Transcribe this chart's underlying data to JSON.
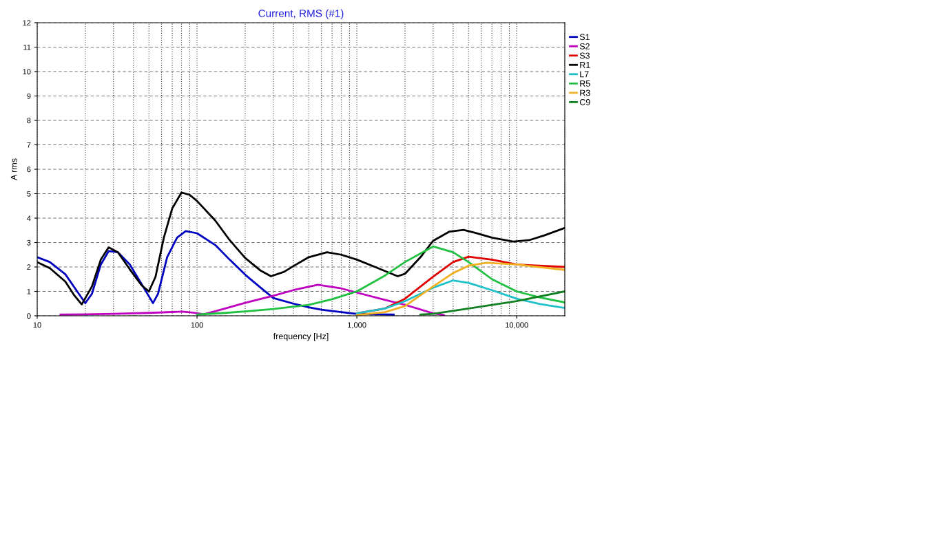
{
  "chart_data": {
    "type": "line",
    "title": "Current, RMS (#1)",
    "xlabel": "frequency [Hz]",
    "ylabel": "A rms",
    "log": "x",
    "xlim": [
      10,
      20000
    ],
    "xticks": [
      10,
      100,
      {
        "value": 1000,
        "label": "1,000"
      },
      {
        "value": 10000,
        "label": "10,000"
      }
    ],
    "ylim": [
      0,
      12
    ],
    "yticks": [
      0,
      1,
      2,
      3,
      4,
      5,
      6,
      7,
      8,
      9,
      10,
      11,
      12
    ],
    "grid": true,
    "legend": "right",
    "marker": "none",
    "line_style": "solid",
    "series": [
      {
        "name": "S1",
        "color": "#0000c0",
        "x": [
          10,
          12,
          15,
          18,
          20,
          22,
          25,
          28,
          32,
          38,
          45,
          50,
          53,
          57,
          65,
          75,
          85,
          100,
          130,
          160,
          202,
          250,
          300,
          400,
          500,
          600,
          800,
          1000,
          1300,
          1700
        ],
        "values": [
          2.4,
          2.2,
          1.7,
          0.95,
          0.52,
          0.9,
          2.1,
          2.65,
          2.6,
          2.1,
          1.3,
          0.8,
          0.52,
          0.9,
          2.4,
          3.2,
          3.47,
          3.38,
          2.9,
          2.3,
          1.66,
          1.15,
          0.73,
          0.5,
          0.35,
          0.25,
          0.15,
          0.08,
          0.06,
          0.05
        ]
      },
      {
        "name": "S2",
        "color": "#c000c0",
        "x": [
          14,
          20,
          30,
          50,
          80,
          95,
          110,
          150,
          200,
          300,
          400,
          570,
          800,
          1000,
          1500,
          2000,
          3000,
          3500
        ],
        "values": [
          0.05,
          0.06,
          0.08,
          0.12,
          0.17,
          0.13,
          0.06,
          0.3,
          0.53,
          0.82,
          1.05,
          1.27,
          1.12,
          0.95,
          0.65,
          0.45,
          0.1,
          0.03
        ]
      },
      {
        "name": "S3",
        "color": "#e00000",
        "x": [
          1000,
          1500,
          2000,
          3000,
          4000,
          5000,
          7000,
          10000,
          20000
        ],
        "values": [
          0.1,
          0.3,
          0.7,
          1.6,
          2.2,
          2.42,
          2.3,
          2.1,
          2.0
        ]
      },
      {
        "name": "R1",
        "color": "#000000",
        "x": [
          10,
          12,
          15,
          17,
          19,
          22,
          25,
          28,
          32,
          38,
          45,
          50,
          55,
          62,
          70,
          80,
          90,
          100,
          130,
          160,
          200,
          250,
          290,
          350,
          400,
          500,
          650,
          800,
          1000,
          1300,
          1800,
          2000,
          2500,
          3000,
          3800,
          4650,
          5500,
          7000,
          9500,
          12000,
          15000,
          20000
        ],
        "values": [
          2.2,
          1.95,
          1.4,
          0.85,
          0.47,
          1.2,
          2.3,
          2.8,
          2.6,
          1.9,
          1.25,
          1.0,
          1.6,
          3.2,
          4.4,
          5.05,
          4.95,
          4.7,
          3.9,
          3.1,
          2.37,
          1.85,
          1.62,
          1.8,
          2.03,
          2.4,
          2.6,
          2.5,
          2.3,
          2.0,
          1.62,
          1.72,
          2.4,
          3.07,
          3.45,
          3.52,
          3.4,
          3.2,
          3.04,
          3.1,
          3.3,
          3.6
        ]
      },
      {
        "name": "L7",
        "color": "#20c0c8",
        "x": [
          1000,
          1500,
          2000,
          3000,
          4000,
          5000,
          7000,
          10000,
          14000,
          20000
        ],
        "values": [
          0.1,
          0.3,
          0.6,
          1.15,
          1.45,
          1.35,
          1.05,
          0.7,
          0.48,
          0.32
        ]
      },
      {
        "name": "R5",
        "color": "#20c040",
        "x": [
          100,
          150,
          200,
          300,
          500,
          700,
          1000,
          1500,
          2000,
          3000,
          4000,
          5000,
          7000,
          10000,
          14000,
          20000
        ],
        "values": [
          0.05,
          0.12,
          0.18,
          0.28,
          0.45,
          0.68,
          1.0,
          1.65,
          2.2,
          2.84,
          2.6,
          2.2,
          1.5,
          1.0,
          0.75,
          0.55
        ]
      },
      {
        "name": "R3",
        "color": "#f0b020",
        "x": [
          1000,
          1500,
          2000,
          3000,
          4000,
          5000,
          6500,
          10000,
          20000
        ],
        "values": [
          0.03,
          0.15,
          0.4,
          1.2,
          1.75,
          2.05,
          2.17,
          2.1,
          1.88
        ]
      },
      {
        "name": "C9",
        "color": "#108020",
        "x": [
          2500,
          3000,
          5000,
          10000,
          20000
        ],
        "values": [
          0.05,
          0.08,
          0.3,
          0.6,
          1.0
        ]
      }
    ]
  }
}
